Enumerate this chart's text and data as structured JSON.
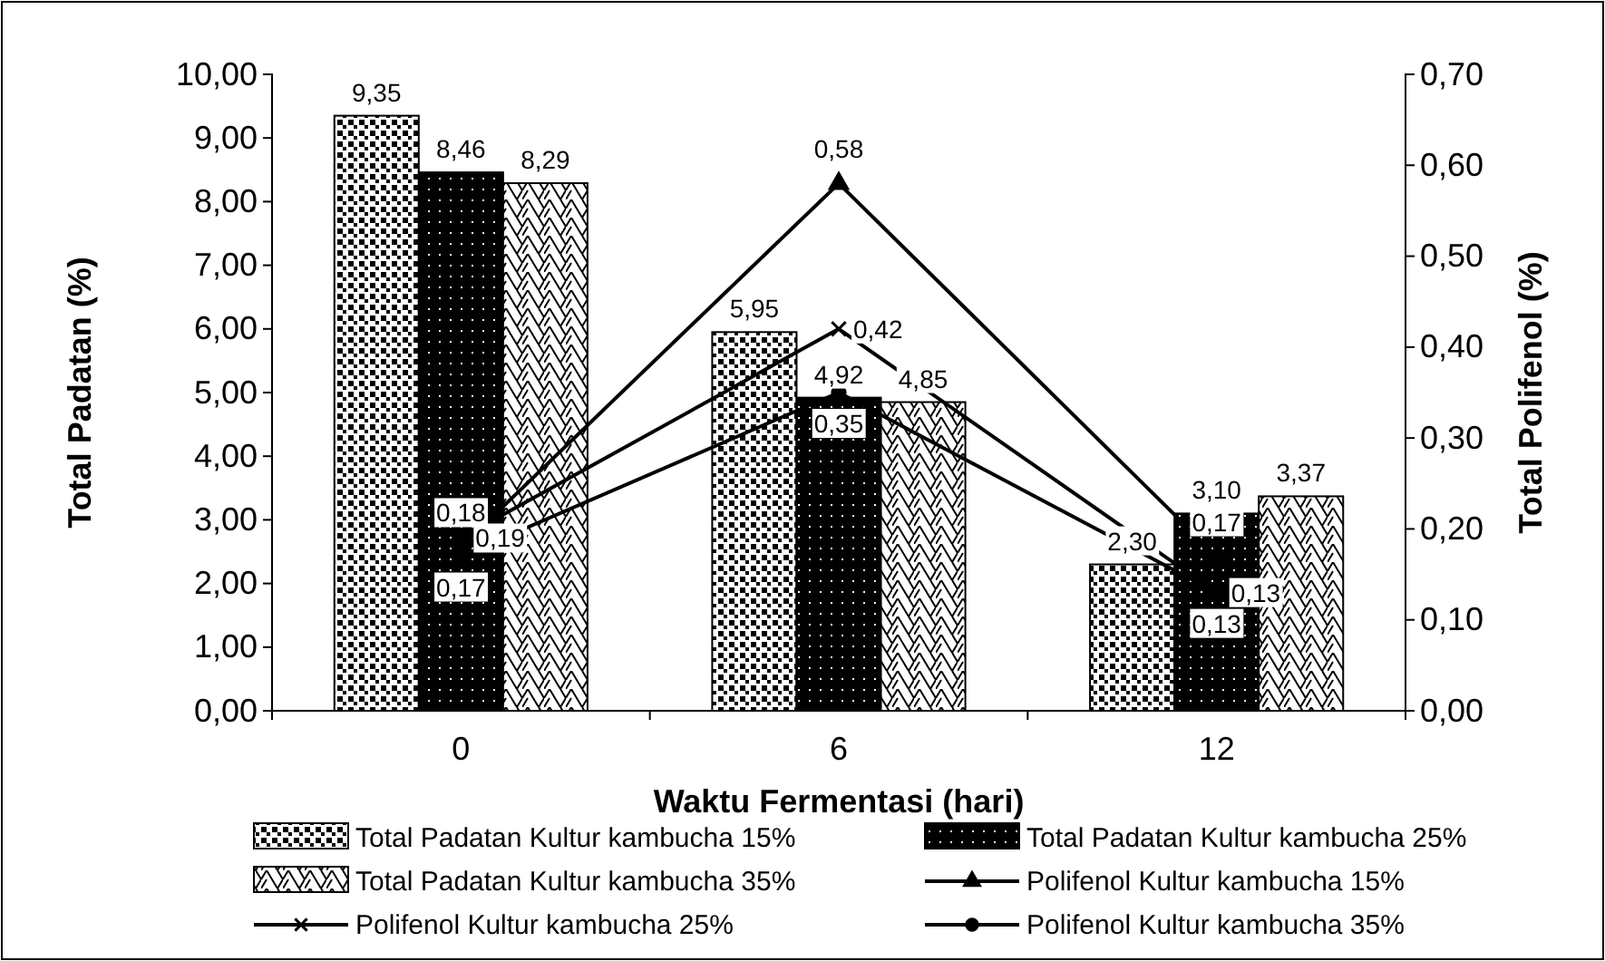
{
  "chart_data": {
    "type": "bar",
    "categories": [
      "0",
      "6",
      "12"
    ],
    "xlabel": "Waktu Fermentasi (hari)",
    "ylabel": "Total Padatan (%)",
    "y2label": "Total Polifenol (%)",
    "ylim": [
      0,
      10
    ],
    "yticks": [
      {
        "value": 0,
        "label": "0,00"
      },
      {
        "value": 1,
        "label": "1,00"
      },
      {
        "value": 2,
        "label": "2,00"
      },
      {
        "value": 3,
        "label": "3,00"
      },
      {
        "value": 4,
        "label": "4,00"
      },
      {
        "value": 5,
        "label": "5,00"
      },
      {
        "value": 6,
        "label": "6,00"
      },
      {
        "value": 7,
        "label": "7,00"
      },
      {
        "value": 8,
        "label": "8,00"
      },
      {
        "value": 9,
        "label": "9,00"
      },
      {
        "value": 10,
        "label": "10,00"
      }
    ],
    "y2lim": [
      0,
      0.7
    ],
    "y2ticks": [
      {
        "value": 0,
        "label": "0,00"
      },
      {
        "value": 0.1,
        "label": "0,10"
      },
      {
        "value": 0.2,
        "label": "0,20"
      },
      {
        "value": 0.3,
        "label": "0,30"
      },
      {
        "value": 0.4,
        "label": "0,40"
      },
      {
        "value": 0.5,
        "label": "0,50"
      },
      {
        "value": 0.6,
        "label": "0,60"
      },
      {
        "value": 0.7,
        "label": "0,70"
      }
    ],
    "legend": "bottom",
    "data_labels": true,
    "series": [
      {
        "name": "Total Padatan Kultur kambucha 15%",
        "color": "#000000",
        "values": [
          9.35,
          5.95,
          2.3
        ],
        "value_labels": [
          "9,35",
          "5,95",
          "2,30"
        ]
      },
      {
        "name": "Total Padatan Kultur kambucha 25%",
        "color": "#000000",
        "values": [
          8.46,
          4.92,
          3.1
        ],
        "value_labels": [
          "8,46",
          "4,92",
          "3,10"
        ]
      },
      {
        "name": "Total Padatan Kultur kambucha 35%",
        "color": "#000000",
        "values": [
          8.29,
          4.85,
          3.37
        ],
        "value_labels": [
          "8,29",
          "4,85",
          "3,37"
        ]
      },
      {
        "name": "Polifenol Kultur kambucha 15%",
        "type": "line",
        "axis": "y2",
        "marker": "triangle",
        "color": "#000000",
        "values": [
          0.18,
          0.58,
          0.17
        ],
        "value_labels": [
          "0,18",
          "0,58",
          "0,17"
        ]
      },
      {
        "name": "Polifenol Kultur kambucha 25%",
        "type": "line",
        "axis": "y2",
        "marker": "cross",
        "color": "#000000",
        "values": [
          0.19,
          0.42,
          0.13
        ],
        "value_labels": [
          "0,19",
          "0,42",
          "0,13"
        ]
      },
      {
        "name": "Polifenol Kultur kambucha 35%",
        "type": "line",
        "axis": "y2",
        "marker": "circle",
        "color": "#000000",
        "values": [
          0.17,
          0.35,
          0.13
        ],
        "value_labels": [
          "0,17",
          "0,35",
          "0,13"
        ]
      }
    ]
  }
}
